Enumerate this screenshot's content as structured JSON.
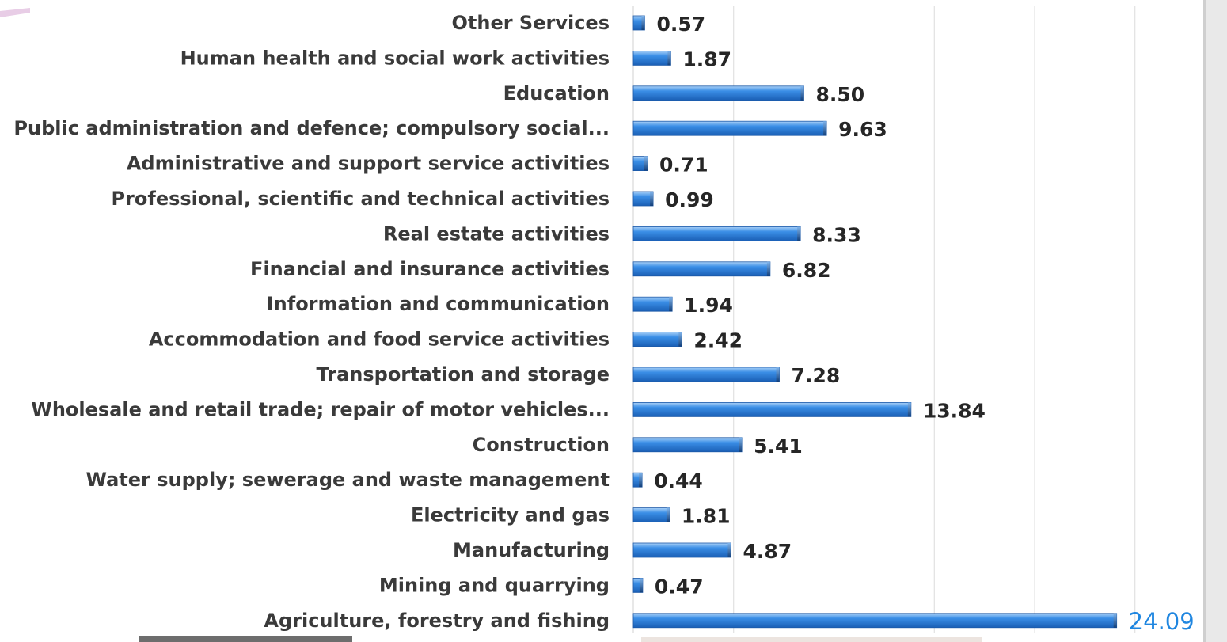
{
  "chart_data": {
    "type": "bar",
    "orientation": "horizontal",
    "categories": [
      "Other Services",
      "Human health and social work activities",
      "Education",
      "Public administration and defence; compulsory social...",
      "Administrative and support service activities",
      "Professional, scientific and technical activities",
      "Real estate activities",
      "Financial and insurance activities",
      "Information and communication",
      "Accommodation and food service activities",
      "Transportation and storage",
      "Wholesale and retail trade; repair of motor vehicles...",
      "Construction",
      "Water supply; sewerage and waste management",
      "Electricity and gas",
      "Manufacturing",
      "Mining and quarrying",
      "Agriculture, forestry and fishing"
    ],
    "values": [
      0.57,
      1.87,
      8.5,
      9.63,
      0.71,
      0.99,
      8.33,
      6.82,
      1.94,
      2.42,
      7.28,
      13.84,
      5.41,
      0.44,
      1.81,
      4.87,
      0.47,
      24.09
    ],
    "data_labels": [
      "0.57",
      "1.87",
      "8.50",
      "9.63",
      "0.71",
      "0.99",
      "8.33",
      "6.82",
      "1.94",
      "2.42",
      "7.28",
      "13.84",
      "5.41",
      "0.44",
      "1.81",
      "4.87",
      "0.47",
      "24.09"
    ],
    "highlighted_label_index": 17,
    "xlim": [
      0,
      25
    ],
    "grid": true,
    "bar_color": "#3a8ee6",
    "bar_color_dark": "#1a5fb5",
    "highlight_label_color": "#1f86e0",
    "title": "",
    "xlabel": "",
    "ylabel": ""
  }
}
